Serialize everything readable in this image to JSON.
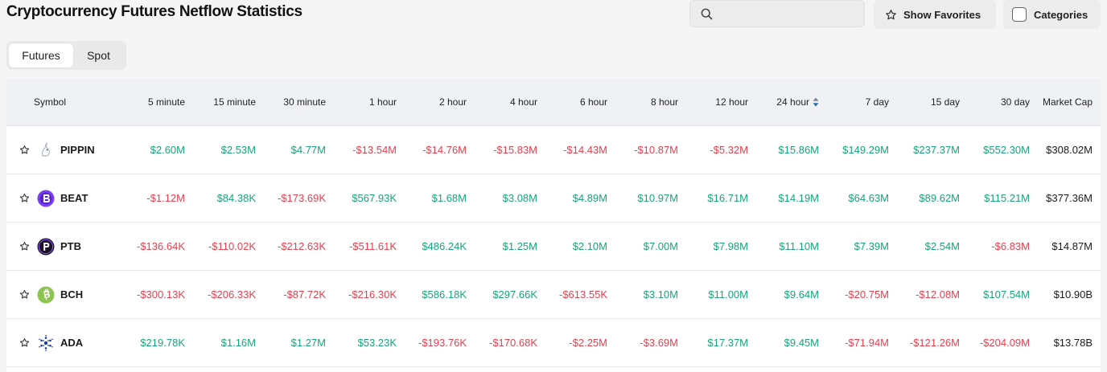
{
  "page": {
    "title": "Cryptocurrency Futures Netflow Statistics"
  },
  "search": {
    "placeholder": "",
    "value": ""
  },
  "buttons": {
    "favorites_label": "Show Favorites",
    "categories_label": "Categories"
  },
  "tabs": [
    {
      "label": "Futures",
      "active": true
    },
    {
      "label": "Spot",
      "active": false
    }
  ],
  "table": {
    "columns": [
      "Symbol",
      "5 minute",
      "15 minute",
      "30 minute",
      "1 hour",
      "2 hour",
      "4 hour",
      "6 hour",
      "8 hour",
      "12 hour",
      "24 hour",
      "7 day",
      "15 day",
      "30 day",
      "Market Cap"
    ],
    "sorted_column": "24 hour",
    "rows": [
      {
        "symbol": "PIPPIN",
        "icon": "pippin-unicorn-icon",
        "values": [
          "$2.60M",
          "$2.53M",
          "$4.77M",
          "-$13.54M",
          "-$14.76M",
          "-$15.83M",
          "-$14.43M",
          "-$10.87M",
          "-$5.32M",
          "$15.86M",
          "$149.29M",
          "$237.37M",
          "$552.30M"
        ],
        "market_cap": "$308.02M"
      },
      {
        "symbol": "BEAT",
        "icon": "beat-coin-icon",
        "values": [
          "-$1.12M",
          "$84.38K",
          "-$173.69K",
          "$567.93K",
          "$1.68M",
          "$3.08M",
          "$4.89M",
          "$10.97M",
          "$16.71M",
          "$14.19M",
          "$64.63M",
          "$89.62M",
          "$115.21M"
        ],
        "market_cap": "$377.36M"
      },
      {
        "symbol": "PTB",
        "icon": "ptb-coin-icon",
        "values": [
          "-$136.64K",
          "-$110.02K",
          "-$212.63K",
          "-$511.61K",
          "$486.24K",
          "$1.25M",
          "$2.10M",
          "$7.00M",
          "$7.98M",
          "$11.10M",
          "$7.39M",
          "$2.54M",
          "-$6.83M"
        ],
        "market_cap": "$14.87M"
      },
      {
        "symbol": "BCH",
        "icon": "bitcoin-cash-icon",
        "values": [
          "-$300.13K",
          "-$206.33K",
          "-$87.72K",
          "-$216.30K",
          "$586.18K",
          "$297.66K",
          "-$613.55K",
          "$3.10M",
          "$11.00M",
          "$9.64M",
          "-$20.75M",
          "-$12.08M",
          "$107.54M"
        ],
        "market_cap": "$10.90B"
      },
      {
        "symbol": "ADA",
        "icon": "cardano-icon",
        "values": [
          "$219.78K",
          "$1.16M",
          "$1.27M",
          "$53.23K",
          "-$193.76K",
          "-$170.68K",
          "-$2.25M",
          "-$3.69M",
          "$17.37M",
          "$9.45M",
          "-$71.94M",
          "-$121.26M",
          "-$204.09M"
        ],
        "market_cap": "$13.78B"
      }
    ]
  },
  "colors": {
    "positive": "#17a37a",
    "negative": "#e5404f",
    "sort_arrow": "#1c6fb8"
  }
}
